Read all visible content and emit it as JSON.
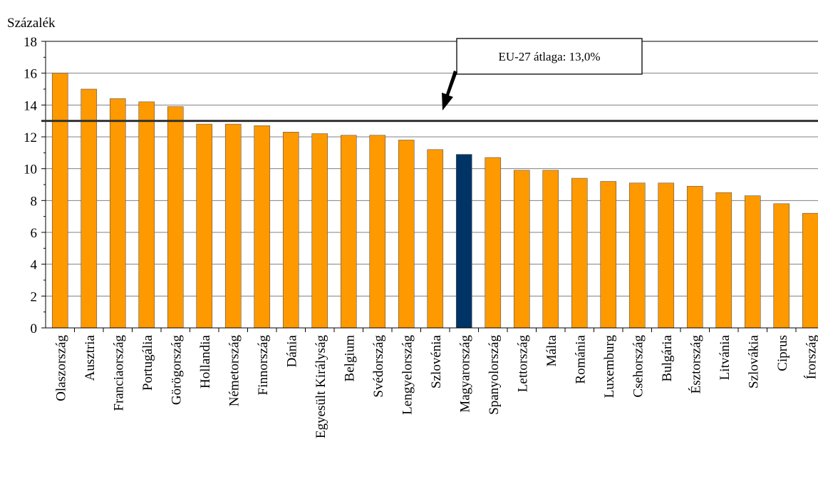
{
  "chart_data": {
    "type": "bar",
    "ylabel": "Százalék",
    "ylim": [
      0,
      18
    ],
    "yticks": [
      0,
      2,
      4,
      6,
      8,
      10,
      12,
      14,
      16,
      18
    ],
    "grid": true,
    "categories": [
      "Olaszország",
      "Ausztria",
      "Franciaország",
      "Portugália",
      "Görögország",
      "Hollandia",
      "Németország",
      "Finnország",
      "Dánia",
      "Egyesült Királyság",
      "Belgium",
      "Svédország",
      "Lengyelország",
      "Szlovénia",
      "Magyarország",
      "Spanyolország",
      "Lettország",
      "Málta",
      "Románia",
      "Luxemburg",
      "Csehország",
      "Bulgária",
      "Észtország",
      "Litvánia",
      "Szlovákia",
      "Ciprus",
      "Írország"
    ],
    "values": [
      16.0,
      15.0,
      14.4,
      14.2,
      13.9,
      12.8,
      12.8,
      12.7,
      12.3,
      12.2,
      12.1,
      12.1,
      11.8,
      11.2,
      10.9,
      10.7,
      9.9,
      9.9,
      9.4,
      9.2,
      9.1,
      9.1,
      8.9,
      8.5,
      8.3,
      7.8,
      7.2
    ],
    "highlight": "Magyarország",
    "reference_line": {
      "value": 13.0,
      "label": "EU-27 átlaga: 13,0%"
    }
  },
  "colors": {
    "bar": "#FF9900",
    "highlight": "#003366",
    "grid": "#808080",
    "reference": "#333333"
  }
}
